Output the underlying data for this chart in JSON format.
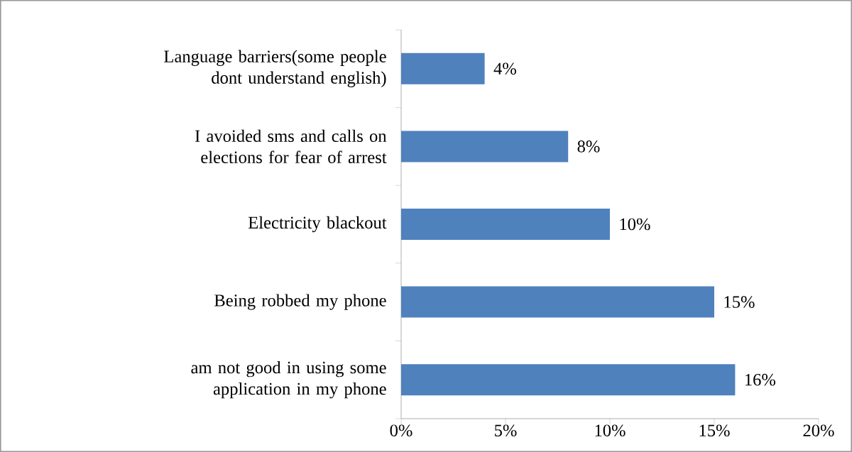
{
  "chart_data": {
    "type": "bar",
    "orientation": "horizontal",
    "categories": [
      "Language barriers(some people dont understand english)",
      "I avoided sms and calls on elections for fear of arrest",
      "Electricity blackout",
      "Being robbed my phone",
      "am not good in using some application in my phone"
    ],
    "values": [
      4,
      8,
      10,
      15,
      16
    ],
    "value_labels": [
      "4%",
      "8%",
      "10%",
      "15%",
      "16%"
    ],
    "color": "#4f81bd",
    "xlim": [
      0,
      20
    ],
    "xticks": [
      {
        "value": 0,
        "label": "0%"
      },
      {
        "value": 5,
        "label": "5%"
      },
      {
        "value": 10,
        "label": "10%"
      },
      {
        "value": 15,
        "label": "15%"
      },
      {
        "value": 20,
        "label": "20%"
      }
    ],
    "grid": false
  }
}
